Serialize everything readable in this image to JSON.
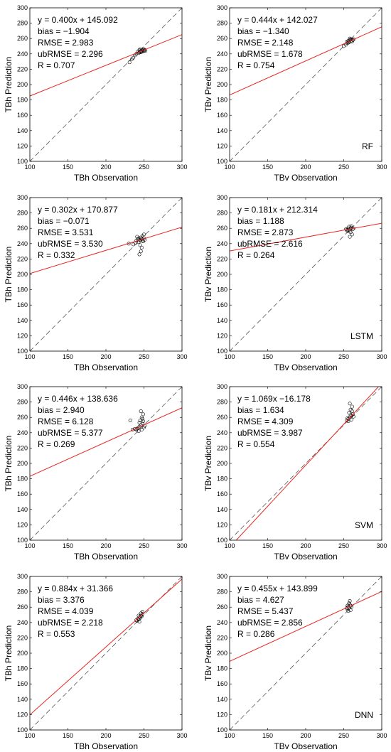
{
  "chart_data": [
    {
      "type": "scatter",
      "model": "",
      "xlabel": "TBh Observation",
      "ylabel": "TBh Prediction",
      "xlim": [
        100,
        300
      ],
      "ylim": [
        100,
        300
      ],
      "xticks": [
        100,
        150,
        200,
        250,
        300
      ],
      "yticks": [
        100,
        120,
        140,
        160,
        180,
        200,
        220,
        240,
        260,
        280,
        300
      ],
      "fit": {
        "slope": 0.4,
        "intercept": 145.092
      },
      "stats": [
        "y = 0.400x + 145.092",
        "bias = −1.904",
        "RMSE = 2.983",
        "ubRMSE = 2.296",
        "R = 0.707"
      ],
      "points": [
        [
          242,
          243
        ],
        [
          244,
          242
        ],
        [
          246,
          244
        ],
        [
          248,
          245
        ],
        [
          250,
          244
        ],
        [
          245,
          246
        ],
        [
          243,
          241
        ],
        [
          247,
          243
        ],
        [
          249,
          246
        ],
        [
          251,
          245
        ],
        [
          240,
          240
        ],
        [
          238,
          238
        ],
        [
          236,
          235
        ],
        [
          234,
          233
        ],
        [
          231,
          229
        ],
        [
          244,
          245
        ],
        [
          246,
          242
        ],
        [
          248,
          243
        ],
        [
          250,
          246
        ],
        [
          252,
          244
        ]
      ]
    },
    {
      "type": "scatter",
      "model": "RF",
      "xlabel": "TBv Observation",
      "ylabel": "TBv Prediction",
      "xlim": [
        100,
        300
      ],
      "ylim": [
        100,
        300
      ],
      "xticks": [
        100,
        150,
        200,
        250,
        300
      ],
      "yticks": [
        100,
        120,
        140,
        160,
        180,
        200,
        220,
        240,
        260,
        280,
        300
      ],
      "fit": {
        "slope": 0.444,
        "intercept": 142.027
      },
      "stats": [
        "y = 0.444x + 142.027",
        "bias = −1.340",
        "RMSE = 2.148",
        "ubRMSE = 1.678",
        "R = 0.754"
      ],
      "points": [
        [
          254,
          256
        ],
        [
          256,
          257
        ],
        [
          258,
          258
        ],
        [
          260,
          257
        ],
        [
          262,
          258
        ],
        [
          257,
          255
        ],
        [
          259,
          259
        ],
        [
          255,
          254
        ],
        [
          261,
          256
        ],
        [
          263,
          259
        ],
        [
          250,
          250
        ],
        [
          253,
          252
        ],
        [
          258,
          260
        ],
        [
          256,
          255
        ],
        [
          260,
          259
        ]
      ]
    },
    {
      "type": "scatter",
      "model": "",
      "xlabel": "TBh Observation",
      "ylabel": "TBh Prediction",
      "xlim": [
        100,
        300
      ],
      "ylim": [
        100,
        300
      ],
      "xticks": [
        100,
        150,
        200,
        250,
        300
      ],
      "yticks": [
        100,
        120,
        140,
        160,
        180,
        200,
        220,
        240,
        260,
        280,
        300
      ],
      "fit": {
        "slope": 0.302,
        "intercept": 170.877
      },
      "stats": [
        "y = 0.302x + 170.877",
        "bias = −0.071",
        "RMSE = 3.531",
        "ubRMSE = 3.530",
        "R = 0.332"
      ],
      "points": [
        [
          240,
          244
        ],
        [
          242,
          246
        ],
        [
          244,
          245
        ],
        [
          246,
          248
        ],
        [
          248,
          244
        ],
        [
          250,
          247
        ],
        [
          243,
          242
        ],
        [
          245,
          238
        ],
        [
          247,
          235
        ],
        [
          246,
          230
        ],
        [
          244,
          226
        ],
        [
          248,
          250
        ],
        [
          250,
          252
        ],
        [
          241,
          249
        ],
        [
          239,
          241
        ],
        [
          236,
          239
        ],
        [
          230,
          240
        ],
        [
          245,
          244
        ],
        [
          247,
          246
        ],
        [
          249,
          243
        ],
        [
          243,
          247
        ],
        [
          251,
          245
        ]
      ]
    },
    {
      "type": "scatter",
      "model": "LSTM",
      "xlabel": "TBv Observation",
      "ylabel": "TBv Prediction",
      "xlim": [
        100,
        300
      ],
      "ylim": [
        100,
        300
      ],
      "xticks": [
        100,
        150,
        200,
        250,
        300
      ],
      "yticks": [
        100,
        120,
        140,
        160,
        180,
        200,
        220,
        240,
        260,
        280,
        300
      ],
      "fit": {
        "slope": 0.181,
        "intercept": 212.314
      },
      "stats": [
        "y = 0.181x + 212.314",
        "bias = 1.188",
        "RMSE = 2.873",
        "ubRMSE = 2.616",
        "R = 0.264"
      ],
      "points": [
        [
          254,
          258
        ],
        [
          256,
          260
        ],
        [
          258,
          257
        ],
        [
          260,
          261
        ],
        [
          262,
          259
        ],
        [
          257,
          262
        ],
        [
          259,
          255
        ],
        [
          261,
          252
        ],
        [
          258,
          249
        ],
        [
          255,
          256
        ],
        [
          263,
          260
        ],
        [
          256,
          258
        ],
        [
          260,
          263
        ],
        [
          253,
          259
        ],
        [
          259,
          260
        ]
      ]
    },
    {
      "type": "scatter",
      "model": "",
      "xlabel": "TBh Observation",
      "ylabel": "TBh Prediction",
      "xlim": [
        100,
        300
      ],
      "ylim": [
        100,
        300
      ],
      "xticks": [
        100,
        150,
        200,
        250,
        300
      ],
      "yticks": [
        100,
        120,
        140,
        160,
        180,
        200,
        220,
        240,
        260,
        280,
        300
      ],
      "fit": {
        "slope": 0.446,
        "intercept": 138.636
      },
      "stats": [
        "y = 0.446x + 138.636",
        "bias = 2.940",
        "RMSE = 6.128",
        "ubRMSE = 5.377",
        "R = 0.269"
      ],
      "points": [
        [
          240,
          244
        ],
        [
          242,
          246
        ],
        [
          244,
          248
        ],
        [
          246,
          250
        ],
        [
          248,
          252
        ],
        [
          250,
          247
        ],
        [
          245,
          256
        ],
        [
          247,
          260
        ],
        [
          249,
          264
        ],
        [
          246,
          268
        ],
        [
          243,
          242
        ],
        [
          241,
          245
        ],
        [
          244,
          253
        ],
        [
          248,
          258
        ],
        [
          251,
          249
        ],
        [
          238,
          245
        ],
        [
          235,
          244
        ],
        [
          232,
          256
        ],
        [
          247,
          244
        ],
        [
          249,
          255
        ]
      ]
    },
    {
      "type": "scatter",
      "model": "SVM",
      "xlabel": "TBv Observation",
      "ylabel": "TBv Prediction",
      "xlim": [
        100,
        300
      ],
      "ylim": [
        100,
        300
      ],
      "xticks": [
        100,
        150,
        200,
        250,
        300
      ],
      "yticks": [
        100,
        120,
        140,
        160,
        180,
        200,
        220,
        240,
        260,
        280,
        300
      ],
      "fit": {
        "slope": 1.069,
        "intercept": -16.178
      },
      "stats": [
        "y = 1.069x −16.178",
        "bias = 1.634",
        "RMSE = 4.309",
        "ubRMSE = 3.987",
        "R = 0.554"
      ],
      "points": [
        [
          254,
          256
        ],
        [
          256,
          258
        ],
        [
          258,
          260
        ],
        [
          260,
          262
        ],
        [
          262,
          264
        ],
        [
          257,
          266
        ],
        [
          259,
          270
        ],
        [
          261,
          274
        ],
        [
          258,
          278
        ],
        [
          256,
          255
        ],
        [
          260,
          257
        ],
        [
          263,
          261
        ],
        [
          255,
          259
        ],
        [
          259,
          263
        ],
        [
          261,
          268
        ]
      ]
    },
    {
      "type": "scatter",
      "model": "",
      "xlabel": "TBh Observation",
      "ylabel": "TBh Prediction",
      "xlim": [
        100,
        300
      ],
      "ylim": [
        100,
        300
      ],
      "xticks": [
        100,
        150,
        200,
        250,
        300
      ],
      "yticks": [
        100,
        120,
        140,
        160,
        180,
        200,
        220,
        240,
        260,
        280,
        300
      ],
      "fit": {
        "slope": 0.884,
        "intercept": 31.366
      },
      "stats": [
        "y = 0.884x + 31.366",
        "bias = 3.376",
        "RMSE = 4.039",
        "ubRMSE = 2.218",
        "R = 0.553"
      ],
      "points": [
        [
          240,
          243
        ],
        [
          242,
          245
        ],
        [
          244,
          247
        ],
        [
          246,
          249
        ],
        [
          248,
          251
        ],
        [
          243,
          244
        ],
        [
          245,
          246
        ],
        [
          247,
          248
        ],
        [
          241,
          242
        ],
        [
          246,
          252
        ],
        [
          244,
          241
        ],
        [
          248,
          254
        ],
        [
          243,
          249
        ]
      ]
    },
    {
      "type": "scatter",
      "model": "DNN",
      "xlabel": "TBv Observation",
      "ylabel": "TBv Prediction",
      "xlim": [
        100,
        300
      ],
      "ylim": [
        100,
        300
      ],
      "xticks": [
        100,
        150,
        200,
        250,
        300
      ],
      "yticks": [
        100,
        120,
        140,
        160,
        180,
        200,
        220,
        240,
        260,
        280,
        300
      ],
      "fit": {
        "slope": 0.455,
        "intercept": 143.899
      },
      "stats": [
        "y = 0.455x + 143.899",
        "bias = 4.627",
        "RMSE = 5.437",
        "ubRMSE = 2.856",
        "R = 0.286"
      ],
      "points": [
        [
          254,
          259
        ],
        [
          256,
          261
        ],
        [
          258,
          263
        ],
        [
          260,
          260
        ],
        [
          255,
          257
        ],
        [
          257,
          265
        ],
        [
          259,
          262
        ],
        [
          256,
          255
        ],
        [
          258,
          268
        ],
        [
          255,
          262
        ],
        [
          257,
          259
        ],
        [
          259,
          256
        ]
      ]
    }
  ],
  "colors": {
    "points": "#000000",
    "fit_line": "#e8261f",
    "identity_line": "#555555",
    "axes": "#000000"
  }
}
